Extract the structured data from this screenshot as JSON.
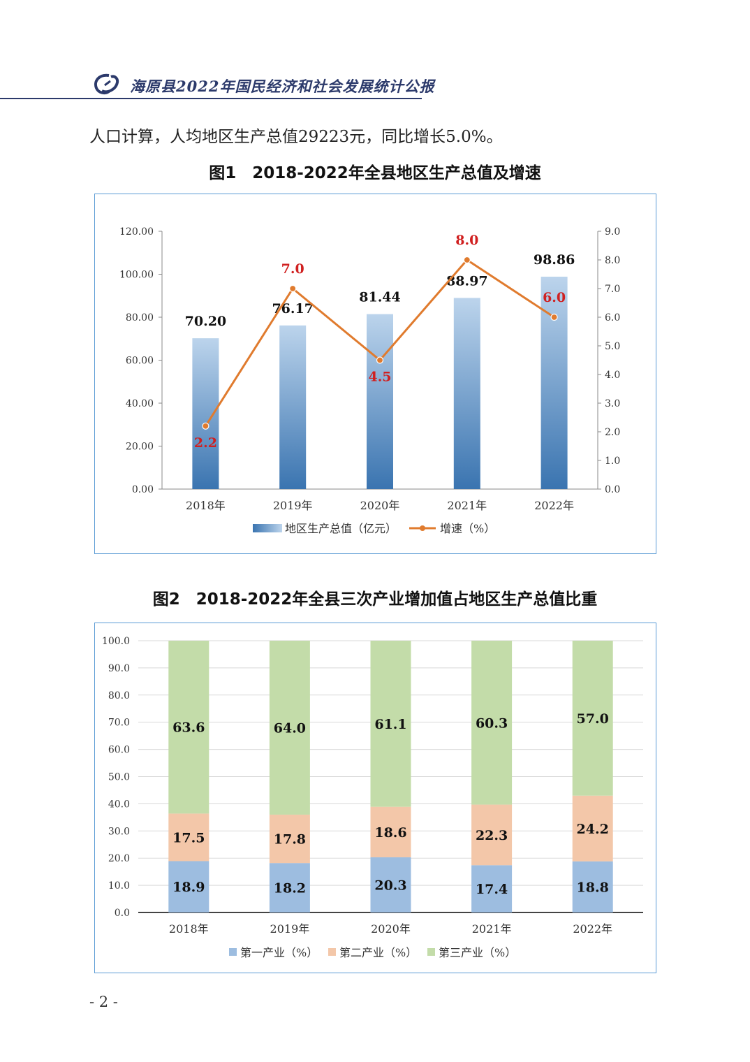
{
  "header": {
    "title": "海原县2022年国民经济和社会发展统计公报"
  },
  "intro_text": "人口计算，人均地区生产总值29223元，同比增长5.0%。",
  "figure1": {
    "caption": "图1　2018-2022年全县地区生产总值及增速"
  },
  "figure2": {
    "caption": "图2　2018-2022年全县三次产业增加值占地区生产总值比重"
  },
  "page_number": "- 2 -",
  "colors": {
    "bar_top": "#bcd4ec",
    "bar_bottom": "#3a74b0",
    "line": "#e07b2e",
    "growth_label": "#d02020",
    "primary": "#9dbde0",
    "secondary": "#f3c7a9",
    "tertiary": "#c3dca9",
    "frame": "#5b9bd5",
    "header": "#2c3a6b"
  },
  "chart_data": [
    {
      "type": "bar",
      "title": "图1　2018-2022年全县地区生产总值及增速",
      "categories": [
        "2018年",
        "2019年",
        "2020年",
        "2021年",
        "2022年"
      ],
      "series": [
        {
          "name": "地区生产总值（亿元）",
          "type": "bar",
          "axis": "left",
          "values": [
            70.2,
            76.17,
            81.44,
            88.97,
            98.86
          ]
        },
        {
          "name": "增速（%）",
          "type": "line",
          "axis": "right",
          "values": [
            2.2,
            7.0,
            4.5,
            8.0,
            6.0
          ]
        }
      ],
      "y_left": {
        "min": 0,
        "max": 120,
        "step": 20,
        "tick_labels": [
          "0.00",
          "20.00",
          "40.00",
          "60.00",
          "80.00",
          "100.00",
          "120.00"
        ]
      },
      "y_right": {
        "min": 0,
        "max": 9,
        "step": 1,
        "tick_labels": [
          "0.0",
          "1.0",
          "2.0",
          "3.0",
          "4.0",
          "5.0",
          "6.0",
          "7.0",
          "8.0",
          "9.0"
        ]
      },
      "bar_labels": [
        "70.20",
        "76.17",
        "81.44",
        "88.97",
        "98.86"
      ],
      "line_labels": [
        "2.2",
        "7.0",
        "4.5",
        "8.0",
        "6.0"
      ],
      "legend": [
        "地区生产总值（亿元）",
        "增速（%）"
      ],
      "legend_position": "bottom",
      "grid": false
    },
    {
      "type": "bar",
      "stacked": true,
      "title": "图2　2018-2022年全县三次产业增加值占地区生产总值比重",
      "categories": [
        "2018年",
        "2019年",
        "2020年",
        "2021年",
        "2022年"
      ],
      "series": [
        {
          "name": "第一产业（%）",
          "values": [
            18.9,
            18.2,
            20.3,
            17.4,
            18.8
          ],
          "labels": [
            "18.9",
            "18.2",
            "20.3",
            "17.4",
            "18.8"
          ]
        },
        {
          "name": "第二产业（%）",
          "values": [
            17.5,
            17.8,
            18.6,
            22.3,
            24.2
          ],
          "labels": [
            "17.5",
            "17.8",
            "18.6",
            "22.3",
            "24.2"
          ]
        },
        {
          "name": "第三产业（%）",
          "values": [
            63.6,
            64.0,
            61.1,
            60.3,
            57.0
          ],
          "labels": [
            "63.6",
            "64.0",
            "61.1",
            "60.3",
            "57.0"
          ]
        }
      ],
      "y": {
        "min": 0,
        "max": 100,
        "step": 10,
        "tick_labels": [
          "0.0",
          "10.0",
          "20.0",
          "30.0",
          "40.0",
          "50.0",
          "60.0",
          "70.0",
          "80.0",
          "90.0",
          "100.0"
        ]
      },
      "legend": [
        "第一产业（%）",
        "第二产业（%）",
        "第三产业（%）"
      ],
      "legend_position": "bottom",
      "grid": true
    }
  ]
}
